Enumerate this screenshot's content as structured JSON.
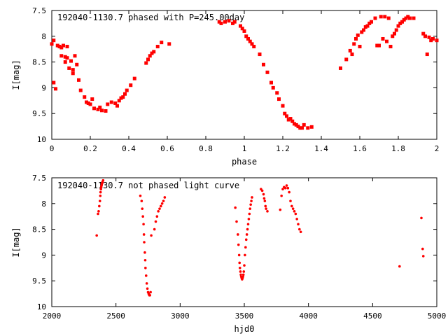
{
  "chart_data": [
    {
      "type": "scatter",
      "title": "192040-1130.7 phased with P=245.00day",
      "xlabel": "phase",
      "ylabel": "I[mag]",
      "xlim": [
        0,
        2
      ],
      "ylim": [
        7.5,
        10
      ],
      "y_inverted": true,
      "grid": false,
      "marker": "filled square",
      "color": "#ff0000",
      "xticks": [
        "0",
        "0.2",
        "0.4",
        "0.6",
        "0.8",
        "1",
        "1.2",
        "1.4",
        "1.6",
        "1.8",
        "2"
      ],
      "yticks": [
        "7.5",
        "8",
        "8.5",
        "9",
        "9.5",
        "10"
      ],
      "series": [
        {
          "x": [
            0.0,
            0.01,
            0.01,
            0.02,
            0.03,
            0.04,
            0.05,
            0.05,
            0.06,
            0.07,
            0.07,
            0.08,
            0.08,
            0.09,
            0.1,
            0.11,
            0.11,
            0.12,
            0.13,
            0.14,
            0.15,
            0.17,
            0.18,
            0.19,
            0.2,
            0.21,
            0.22,
            0.24,
            0.25,
            0.26,
            0.28,
            0.29,
            0.31,
            0.33,
            0.34,
            0.35,
            0.36,
            0.37,
            0.38,
            0.39,
            0.41,
            0.43,
            0.49,
            0.5,
            0.51,
            0.52,
            0.53,
            0.55,
            0.57,
            0.61,
            0.87,
            0.88,
            0.9,
            0.92,
            0.94,
            0.95,
            0.98,
            0.99,
            1.0,
            1.01,
            1.02,
            1.03,
            1.04,
            1.05,
            1.08,
            1.1,
            1.12,
            1.14,
            1.15,
            1.17,
            1.18,
            1.2,
            1.21,
            1.22,
            1.23,
            1.24,
            1.25,
            1.26,
            1.27,
            1.28,
            1.29,
            1.3,
            1.31,
            1.33,
            1.35,
            1.5,
            1.53,
            1.55,
            1.56,
            1.57,
            1.58,
            1.59,
            1.6,
            1.61,
            1.62,
            1.63,
            1.64,
            1.65,
            1.66,
            1.68,
            1.69,
            1.7,
            1.71,
            1.72,
            1.73,
            1.74,
            1.75,
            1.76,
            1.77,
            1.78,
            1.79,
            1.8,
            1.81,
            1.82,
            1.83,
            1.84,
            1.85,
            1.86,
            1.88,
            1.93,
            1.94,
            1.95,
            1.96,
            1.97,
            1.98,
            2.0
          ],
          "y": [
            8.15,
            8.08,
            8.9,
            9.02,
            8.18,
            8.2,
            8.22,
            8.38,
            8.18,
            8.4,
            8.5,
            8.2,
            8.42,
            8.62,
            8.48,
            8.65,
            8.72,
            8.38,
            8.55,
            8.85,
            9.05,
            9.18,
            9.28,
            9.3,
            9.32,
            9.22,
            9.4,
            9.42,
            9.38,
            9.44,
            9.45,
            9.32,
            9.28,
            9.3,
            9.35,
            9.25,
            9.2,
            9.18,
            9.12,
            9.05,
            8.95,
            8.82,
            8.52,
            8.45,
            8.38,
            8.33,
            8.3,
            8.2,
            8.12,
            8.15,
            7.72,
            7.75,
            7.72,
            7.7,
            7.75,
            7.72,
            7.8,
            7.85,
            7.9,
            8.0,
            8.05,
            8.1,
            8.15,
            8.2,
            8.35,
            8.55,
            8.7,
            8.9,
            9.0,
            9.1,
            9.22,
            9.35,
            9.5,
            9.55,
            9.62,
            9.6,
            9.65,
            9.7,
            9.72,
            9.75,
            9.78,
            9.78,
            9.72,
            9.78,
            9.76,
            8.62,
            8.45,
            8.28,
            8.35,
            8.15,
            8.05,
            7.98,
            8.2,
            7.92,
            7.88,
            7.82,
            7.8,
            7.75,
            7.72,
            7.65,
            8.18,
            8.18,
            7.62,
            8.05,
            7.62,
            8.1,
            7.65,
            8.2,
            8.0,
            7.95,
            7.88,
            7.8,
            7.75,
            7.72,
            7.68,
            7.65,
            7.62,
            7.65,
            7.65,
            7.95,
            8.0,
            8.35,
            8.02,
            8.08,
            8.05,
            8.08
          ]
        }
      ]
    },
    {
      "type": "scatter",
      "title": "192040-1130.7 not phased light curve",
      "xlabel": "hjd0",
      "ylabel": "I[mag]",
      "xlim": [
        2000,
        5000
      ],
      "ylim": [
        7.5,
        10
      ],
      "y_inverted": true,
      "grid": false,
      "marker": "filled dot",
      "color": "#ff0000",
      "xticks": [
        "2000",
        "2500",
        "3000",
        "3500",
        "4000",
        "4500",
        "5000"
      ],
      "yticks": [
        "7.5",
        "8",
        "8.5",
        "9",
        "9.5",
        "10"
      ],
      "series": [
        {
          "x": [
            2350,
            2360,
            2365,
            2370,
            2375,
            2378,
            2380,
            2383,
            2385,
            2388,
            2390,
            2393,
            2395,
            2400,
            2690,
            2700,
            2705,
            2710,
            2715,
            2718,
            2720,
            2725,
            2728,
            2730,
            2735,
            2740,
            2745,
            2750,
            2755,
            2760,
            2765,
            2770,
            2775,
            2800,
            2810,
            2820,
            2830,
            2840,
            2850,
            2860,
            2870,
            2880,
            3430,
            3440,
            3450,
            3455,
            3460,
            3463,
            3466,
            3470,
            3473,
            3476,
            3480,
            3483,
            3486,
            3490,
            3493,
            3496,
            3500,
            3505,
            3510,
            3515,
            3520,
            3525,
            3530,
            3535,
            3540,
            3545,
            3550,
            3555,
            3560,
            3630,
            3640,
            3650,
            3655,
            3660,
            3665,
            3670,
            3680,
            3780,
            3790,
            3800,
            3810,
            3820,
            3830,
            3840,
            3850,
            3860,
            3870,
            3880,
            3890,
            3900,
            3910,
            3920,
            3930,
            3940,
            4710,
            4880,
            4890,
            4895
          ],
          "y": [
            8.62,
            8.2,
            8.15,
            8.05,
            7.95,
            7.85,
            7.78,
            7.72,
            7.68,
            7.65,
            7.62,
            7.6,
            7.58,
            7.55,
            7.85,
            7.95,
            8.1,
            8.25,
            8.4,
            8.6,
            8.75,
            8.95,
            9.1,
            9.25,
            9.4,
            9.55,
            9.65,
            9.72,
            9.75,
            9.78,
            9.78,
            9.72,
            8.62,
            8.5,
            8.35,
            8.25,
            8.15,
            8.1,
            8.05,
            8.0,
            7.95,
            7.88,
            8.08,
            8.35,
            8.6,
            8.8,
            9.0,
            9.15,
            9.25,
            9.32,
            9.38,
            9.42,
            9.45,
            9.47,
            9.45,
            9.42,
            9.38,
            9.32,
            9.2,
            9.0,
            8.85,
            8.7,
            8.6,
            8.5,
            8.4,
            8.3,
            8.2,
            8.1,
            8.02,
            7.95,
            7.88,
            7.72,
            7.75,
            7.82,
            7.9,
            7.95,
            8.05,
            8.1,
            8.15,
            8.12,
            7.85,
            7.72,
            7.68,
            7.7,
            7.65,
            7.7,
            7.78,
            7.95,
            8.05,
            8.1,
            8.15,
            8.2,
            8.3,
            8.4,
            8.5,
            8.55,
            9.22,
            8.28,
            8.88,
            9.02
          ]
        }
      ]
    }
  ]
}
